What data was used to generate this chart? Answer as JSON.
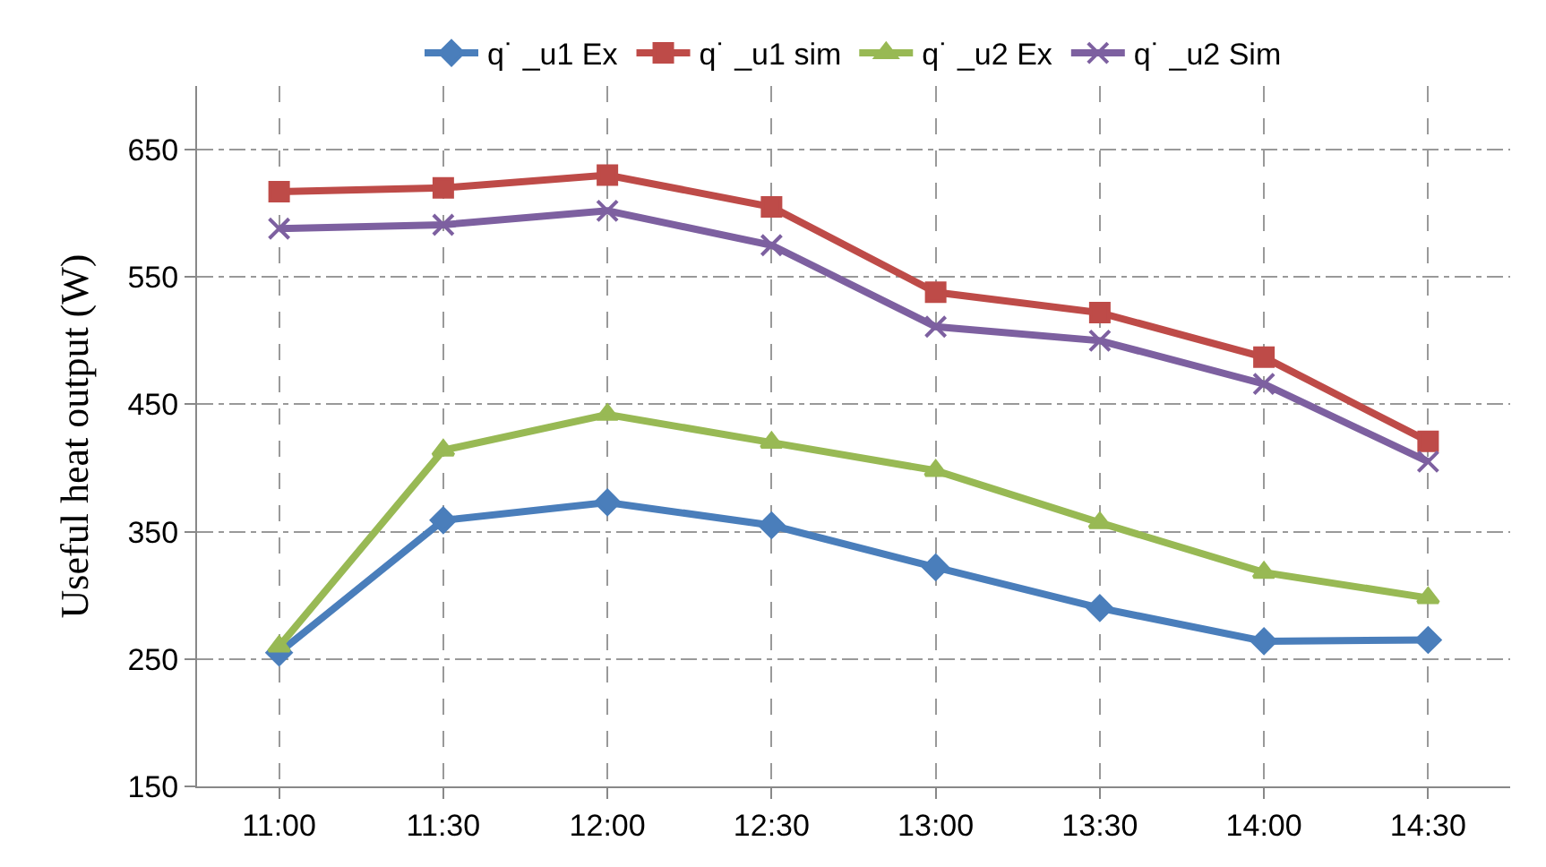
{
  "chart_data": {
    "type": "line",
    "ylabel": "Useful heat output (W)",
    "categories": [
      "11:00",
      "11:30",
      "12:00",
      "12:30",
      "13:00",
      "13:30",
      "14:00",
      "14:30"
    ],
    "series": [
      {
        "name": "q˙ _u1 Ex",
        "color": "#4a7ebb",
        "marker": "diamond",
        "values": [
          255,
          359,
          373,
          355,
          322,
          290,
          264,
          265
        ]
      },
      {
        "name": "q˙ _u1 sim",
        "color": "#be4b48",
        "marker": "square",
        "values": [
          617,
          620,
          630,
          605,
          538,
          522,
          487,
          421
        ]
      },
      {
        "name": "q˙ _u2 Ex",
        "color": "#98b954",
        "marker": "triangle",
        "values": [
          260,
          414,
          442,
          420,
          398,
          357,
          318,
          298
        ]
      },
      {
        "name": "q˙ _u2 Sim",
        "color": "#7d60a0",
        "marker": "cross",
        "values": [
          588,
          591,
          602,
          575,
          511,
          500,
          466,
          405
        ]
      }
    ],
    "ylim": [
      150,
      700
    ],
    "yticks": [
      150,
      250,
      350,
      450,
      550,
      650
    ],
    "grid": true,
    "legend": "top",
    "line_style": "solid"
  }
}
